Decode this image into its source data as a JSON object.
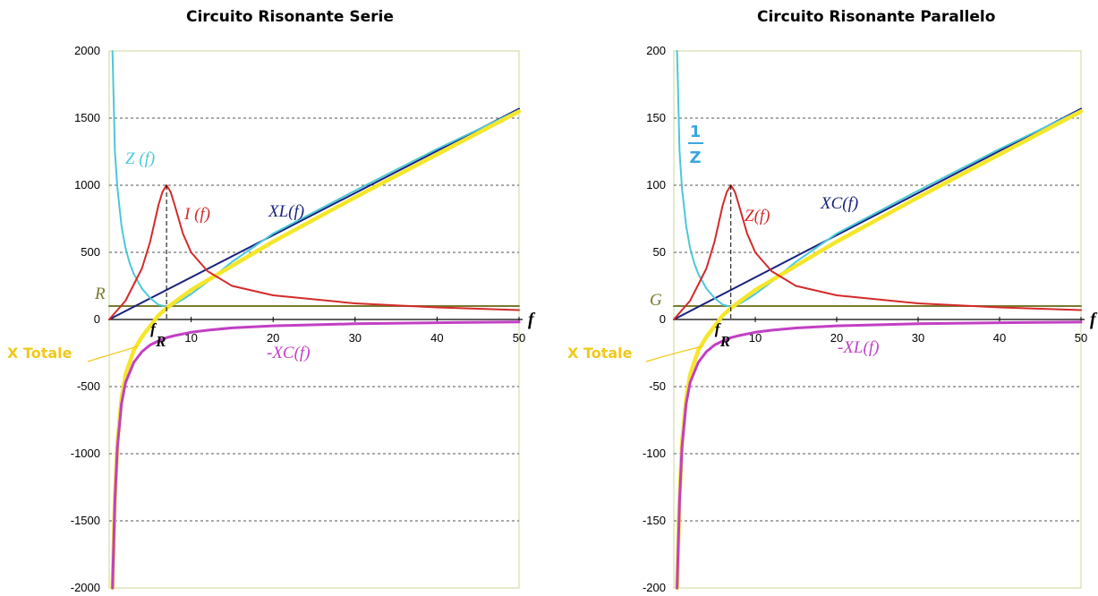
{
  "chart_data": [
    {
      "type": "line",
      "title": "Circuito Risonante Serie",
      "xlabel": "f",
      "xlim": [
        0,
        50
      ],
      "ylim": [
        -2000,
        2000
      ],
      "x_ticks": [
        "10",
        "20",
        "30",
        "40",
        "50"
      ],
      "y_ticks": [
        "2000",
        "1500",
        "1000",
        "500",
        "0",
        "-500",
        "-1000",
        "-1500",
        "-2000"
      ],
      "grid": true,
      "resonance_frequency": 7,
      "resonance_label": "f",
      "resonance_sub": "R",
      "constant_label": "R",
      "x_total_label": "X Totale",
      "series": [
        {
          "name": "Z (f)",
          "color": "#4cc8d8",
          "x": [
            0.4,
            0.7,
            1,
            1.5,
            2,
            2.5,
            3,
            4,
            5,
            6,
            7,
            8,
            9,
            10,
            12,
            15,
            20,
            30,
            40,
            50
          ],
          "values": [
            2000,
            1250,
            980,
            700,
            530,
            420,
            340,
            230,
            160,
            110,
            95,
            115,
            150,
            190,
            280,
            430,
            640,
            960,
            1270,
            1560
          ]
        },
        {
          "name": "I (f)",
          "color": "#d42a2a",
          "x": [
            0,
            2,
            4,
            5,
            6,
            6.5,
            7,
            7.5,
            8,
            9,
            10,
            12,
            15,
            20,
            30,
            40,
            50
          ],
          "values": [
            0,
            140,
            380,
            580,
            850,
            950,
            1000,
            950,
            850,
            640,
            500,
            360,
            250,
            180,
            120,
            90,
            70
          ]
        },
        {
          "name": "XL(f)",
          "color": "#1a237e",
          "x": [
            0,
            50
          ],
          "values": [
            0,
            1570
          ]
        },
        {
          "name": "-XC(f)",
          "color": "#c23fc4",
          "x": [
            0.4,
            0.7,
            1,
            1.5,
            2,
            3,
            4,
            5,
            6,
            7,
            8,
            10,
            12,
            15,
            20,
            30,
            40,
            50
          ],
          "values": [
            -2000,
            -1350,
            -950,
            -630,
            -470,
            -320,
            -240,
            -190,
            -160,
            -135,
            -120,
            -95,
            -80,
            -63,
            -47,
            -32,
            -24,
            -19
          ]
        },
        {
          "name": "X Totale",
          "color": "#f5e62a",
          "x": [
            0.4,
            0.7,
            1,
            1.5,
            2,
            3,
            4,
            5,
            6,
            7,
            8,
            10,
            15,
            20,
            30,
            40,
            50
          ],
          "values": [
            -2000,
            -1330,
            -920,
            -590,
            -410,
            -230,
            -130,
            -50,
            30,
            85,
            130,
            220,
            400,
            580,
            910,
            1230,
            1550
          ]
        },
        {
          "name": "R",
          "color": "#7a7a2e",
          "x": [
            0,
            50
          ],
          "values": [
            100,
            100
          ]
        }
      ]
    },
    {
      "type": "line",
      "title": "Circuito Risonante Parallelo",
      "xlabel": "f",
      "xlim": [
        0,
        50
      ],
      "ylim": [
        -200,
        200
      ],
      "x_ticks": [
        "10",
        "20",
        "30",
        "40",
        "50"
      ],
      "y_ticks": [
        "200",
        "150",
        "100",
        "50",
        "0",
        "-50",
        "-100",
        "-150",
        "-200"
      ],
      "grid": true,
      "resonance_frequency": 7,
      "resonance_label": "f",
      "resonance_sub": "R",
      "constant_label": "G",
      "x_total_label": "X Totale",
      "series": [
        {
          "name": "1/Z",
          "color": "#4cc8d8",
          "x": [
            0.4,
            0.7,
            1,
            1.5,
            2,
            2.5,
            3,
            4,
            5,
            6,
            7,
            8,
            9,
            10,
            12,
            15,
            20,
            30,
            40,
            50
          ],
          "values": [
            200,
            125,
            98,
            70,
            53,
            42,
            34,
            23,
            16,
            11,
            9.5,
            11.5,
            15,
            19,
            28,
            43,
            64,
            96,
            127,
            156
          ]
        },
        {
          "name": "Z(f)",
          "color": "#d42a2a",
          "x": [
            0,
            2,
            4,
            5,
            6,
            6.5,
            7,
            7.5,
            8,
            9,
            10,
            12,
            15,
            20,
            30,
            40,
            50
          ],
          "values": [
            0,
            14,
            38,
            58,
            85,
            95,
            100,
            95,
            85,
            64,
            50,
            36,
            25,
            18,
            12,
            9,
            7
          ]
        },
        {
          "name": "XC(f)",
          "color": "#1a237e",
          "x": [
            0,
            50
          ],
          "values": [
            0,
            157
          ]
        },
        {
          "name": "-XL(f)",
          "color": "#c23fc4",
          "x": [
            0.4,
            0.7,
            1,
            1.5,
            2,
            3,
            4,
            5,
            6,
            7,
            8,
            10,
            12,
            15,
            20,
            30,
            40,
            50
          ],
          "values": [
            -200,
            -135,
            -95,
            -63,
            -47,
            -32,
            -24,
            -19,
            -16,
            -13.5,
            -12,
            -9.5,
            -8,
            -6.3,
            -4.7,
            -3.2,
            -2.4,
            -1.9
          ]
        },
        {
          "name": "X Totale",
          "color": "#f5e62a",
          "x": [
            0.4,
            0.7,
            1,
            1.5,
            2,
            3,
            4,
            5,
            6,
            7,
            8,
            10,
            15,
            20,
            30,
            40,
            50
          ],
          "values": [
            -200,
            -133,
            -92,
            -59,
            -41,
            -23,
            -13,
            -5,
            3,
            8.5,
            13,
            22,
            40,
            58,
            91,
            123,
            155
          ]
        },
        {
          "name": "G",
          "color": "#7a7a2e",
          "x": [
            0,
            50
          ],
          "values": [
            10,
            10
          ]
        }
      ],
      "one_over_z": {
        "num": "1",
        "den": "Z"
      }
    }
  ],
  "colors": {
    "grid": "#555555",
    "plot_border": "#c8d89a",
    "axis": "#000000"
  }
}
